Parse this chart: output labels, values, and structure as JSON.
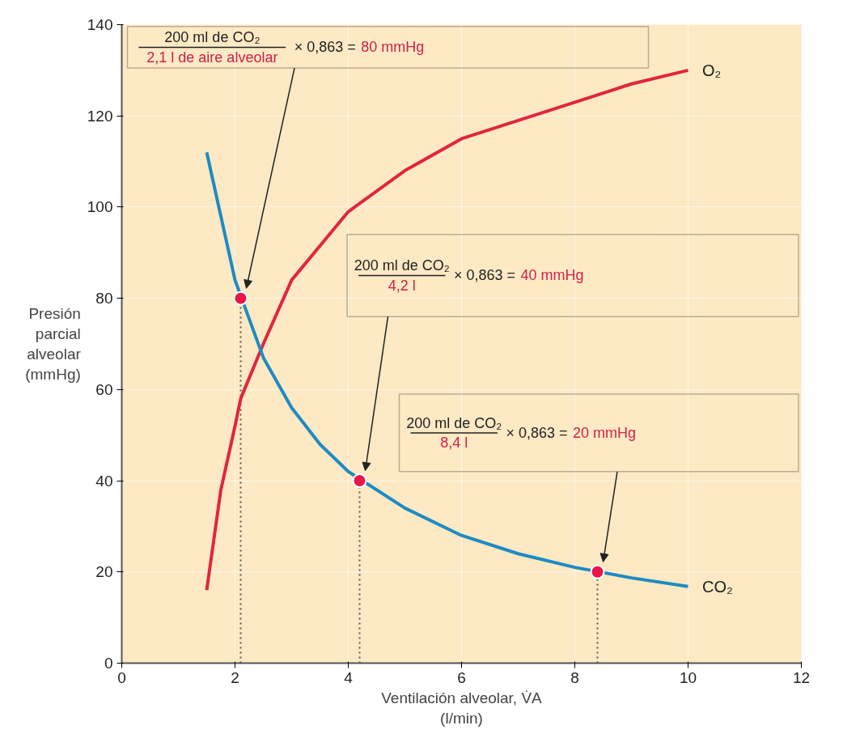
{
  "chart_data": {
    "type": "line",
    "xlabel": "Ventilación alveolar, V̇A\n(l/min)",
    "ylabel": "Presión\nparcial\nalveolar\n(mmHg)",
    "xlim": [
      0,
      12
    ],
    "xticks": [
      0,
      2,
      4,
      6,
      8,
      10,
      12
    ],
    "ylim": [
      0,
      140
    ],
    "yticks": [
      0,
      20,
      40,
      60,
      80,
      100,
      120,
      140
    ],
    "grid": true,
    "series": [
      {
        "name": "O₂",
        "color": "#e0263f",
        "x": [
          1.5,
          1.75,
          2,
          2.1,
          2.5,
          3,
          4,
          5,
          6,
          7,
          8,
          9,
          10
        ],
        "values": [
          16,
          38,
          52,
          58,
          70,
          84,
          99,
          108,
          115,
          119,
          123,
          127,
          130
        ]
      },
      {
        "name": "CO₂",
        "color": "#1e8bc3",
        "x": [
          1.5,
          2,
          2.5,
          3,
          3.5,
          4,
          5,
          6,
          7,
          8,
          9,
          10
        ],
        "values": [
          112,
          84,
          67,
          56,
          48,
          42,
          34,
          28,
          24,
          21,
          18.7,
          16.8
        ]
      },
      {
        "type": "scatter",
        "marker": "circle",
        "color": "#e8174a",
        "x": [
          2.1,
          4.2,
          8.4
        ],
        "values": [
          80,
          40,
          20
        ]
      }
    ],
    "ref_lines": [
      {
        "axis": "x",
        "value": 2.1,
        "line_style": "dotted",
        "color": "#555555"
      },
      {
        "axis": "x",
        "value": 4.2,
        "line_style": "dotted",
        "color": "#555555"
      },
      {
        "axis": "x",
        "value": 8.4,
        "line_style": "dotted",
        "color": "#555555"
      }
    ],
    "annotations": [
      "200 ml de CO₂",
      "2,1 l de aire alveolar",
      "× 0,863 =",
      "80 mmHg",
      "200 ml de CO₂",
      "4,2 l",
      "× 0,863 =",
      "40 mmHg",
      "200 ml de CO₂",
      "8,4 l",
      "× 0,863 =",
      "20 mmHg"
    ]
  }
}
